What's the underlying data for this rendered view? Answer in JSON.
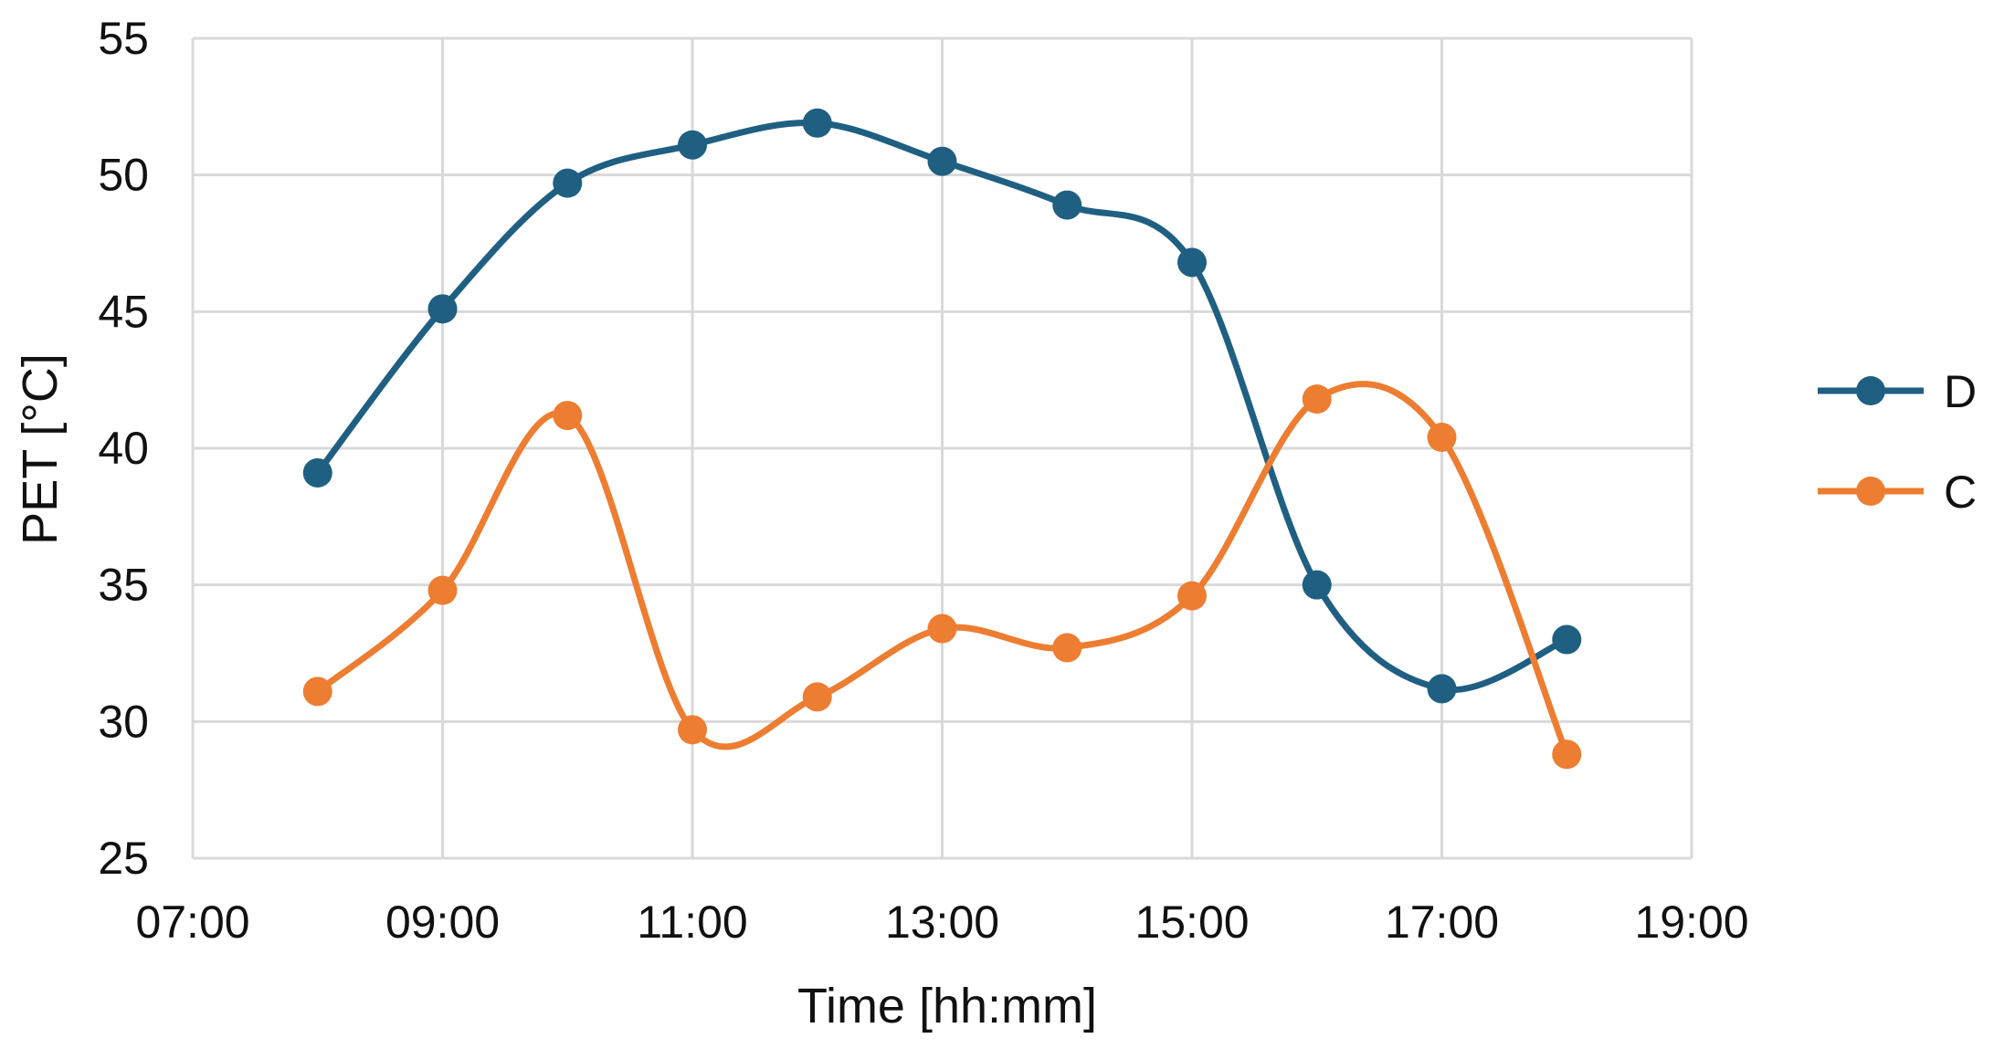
{
  "chart_data": {
    "type": "line",
    "smooth": true,
    "markers": "circle",
    "xlabel": "Time [hh:mm]",
    "ylabel": "PET [°C]",
    "xlim": [
      7,
      19
    ],
    "ylim": [
      25,
      55
    ],
    "x_ticks": [
      {
        "value": 7,
        "label": "07:00"
      },
      {
        "value": 9,
        "label": "09:00"
      },
      {
        "value": 11,
        "label": "11:00"
      },
      {
        "value": 13,
        "label": "13:00"
      },
      {
        "value": 15,
        "label": "15:00"
      },
      {
        "value": 17,
        "label": "17:00"
      },
      {
        "value": 19,
        "label": "19:00"
      }
    ],
    "y_ticks": [
      {
        "value": 25,
        "label": "25"
      },
      {
        "value": 30,
        "label": "30"
      },
      {
        "value": 35,
        "label": "35"
      },
      {
        "value": 40,
        "label": "40"
      },
      {
        "value": 45,
        "label": "45"
      },
      {
        "value": 50,
        "label": "50"
      },
      {
        "value": 55,
        "label": "55"
      }
    ],
    "x_grid_values": [
      7,
      9,
      11,
      13,
      15,
      17,
      19
    ],
    "y_grid_values": [
      30,
      35,
      40,
      45,
      50,
      55
    ],
    "grid": true,
    "legend": "right",
    "x": [
      8,
      9,
      10,
      11,
      12,
      13,
      14,
      15,
      16,
      17,
      18
    ],
    "series": [
      {
        "name": "D",
        "color": "#1f5f82",
        "values": [
          39.1,
          45.1,
          49.7,
          51.1,
          51.9,
          50.5,
          48.9,
          46.8,
          35.0,
          31.2,
          33.0
        ]
      },
      {
        "name": "C",
        "color": "#ed7d31",
        "values": [
          31.1,
          34.8,
          41.2,
          29.7,
          30.9,
          33.4,
          32.7,
          34.6,
          41.8,
          40.4,
          28.8
        ]
      }
    ]
  }
}
